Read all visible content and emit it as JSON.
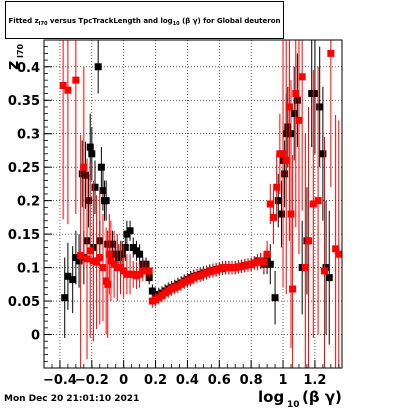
{
  "header": {
    "title_prefix": "Fitted",
    "title_z": "z",
    "title_sub_ipo": "I70",
    "title_middle": "versus TpcTrackLength and log",
    "title_sub10": "10",
    "title_suffix": "(β γ) for Global deuteron"
  },
  "footer": {
    "timestamp": "Mon Dec 20 21:01:10 2021"
  },
  "colors": {
    "series_black": "#000000",
    "series_red": "#ff0000",
    "grid": "#000000"
  },
  "chart_data": {
    "type": "scatter",
    "title": "Fitted z_I70 versus TpcTrackLength and log_10(β γ) for Global deuteron",
    "ylabel_main": "z",
    "ylabel_sub": "I70",
    "xlabel_main": "log",
    "xlabel_sub": "10",
    "xlabel_rest": "(β γ)",
    "xlim": [
      -0.5,
      1.37
    ],
    "ylim": [
      -0.05,
      0.44
    ],
    "x_ticks": [
      -0.4,
      -0.2,
      0,
      0.2,
      0.4,
      0.6,
      0.8,
      1,
      1.2
    ],
    "x_tick_labels": [
      "−0.4",
      "−0.2",
      "0",
      "0.2",
      "0.4",
      "0.6",
      "0.8",
      "1",
      "1.2"
    ],
    "y_ticks": [
      0,
      0.05,
      0.1,
      0.15,
      0.2,
      0.25,
      0.3,
      0.35,
      0.4
    ],
    "y_tick_labels": [
      "0",
      "0.05",
      "0.1",
      "0.15",
      "0.2",
      "0.25",
      "0.3",
      "0.35",
      "0.4"
    ],
    "grid": true,
    "series": [
      {
        "color": "black",
        "points": [
          [
            -0.37,
            0.055,
            0.06
          ],
          [
            -0.35,
            0.087,
            0.05
          ],
          [
            -0.32,
            0.082,
            0.05
          ],
          [
            -0.3,
            0.115,
            0.04
          ],
          [
            -0.28,
            0.11,
            0.04
          ],
          [
            -0.26,
            0.24,
            0.05
          ],
          [
            -0.25,
            0.115,
            0.04
          ],
          [
            -0.24,
            0.238,
            0.05
          ],
          [
            -0.23,
            0.14,
            0.04
          ],
          [
            -0.22,
            0.2,
            0.04
          ],
          [
            -0.21,
            0.28,
            0.05
          ],
          [
            -0.2,
            0.27,
            0.04
          ],
          [
            -0.19,
            0.13,
            0.03
          ],
          [
            -0.18,
            0.22,
            0.04
          ],
          [
            -0.16,
            0.4,
            0.04
          ],
          [
            -0.15,
            0.14,
            0.03
          ],
          [
            -0.14,
            0.25,
            0.03
          ],
          [
            -0.13,
            0.215,
            0.03
          ],
          [
            -0.12,
            0.2,
            0.03
          ],
          [
            -0.11,
            0.2,
            0.03
          ],
          [
            -0.1,
            0.135,
            0.02
          ],
          [
            -0.08,
            0.135,
            0.02
          ],
          [
            -0.07,
            0.135,
            0.02
          ],
          [
            -0.05,
            0.12,
            0.02
          ],
          [
            -0.03,
            0.115,
            0.02
          ],
          [
            -0.01,
            0.12,
            0.02
          ],
          [
            0.01,
            0.13,
            0.02
          ],
          [
            0.02,
            0.15,
            0.02
          ],
          [
            0.04,
            0.155,
            0.015
          ],
          [
            0.06,
            0.13,
            0.015
          ],
          [
            0.08,
            0.125,
            0.015
          ],
          [
            0.1,
            0.12,
            0.015
          ],
          [
            0.12,
            0.105,
            0.01
          ],
          [
            0.14,
            0.105,
            0.01
          ],
          [
            0.16,
            0.085,
            0.01
          ],
          [
            0.18,
            0.065,
            0.01
          ],
          [
            0.2,
            0.058,
            0.01
          ],
          [
            0.22,
            0.06,
            0.01
          ],
          [
            0.24,
            0.062,
            0.01
          ],
          [
            0.26,
            0.065,
            0.01
          ],
          [
            0.28,
            0.068,
            0.01
          ],
          [
            0.3,
            0.07,
            0.01
          ],
          [
            0.32,
            0.072,
            0.01
          ],
          [
            0.34,
            0.075,
            0.01
          ],
          [
            0.36,
            0.077,
            0.01
          ],
          [
            0.38,
            0.08,
            0.01
          ],
          [
            0.4,
            0.082,
            0.01
          ],
          [
            0.42,
            0.085,
            0.01
          ],
          [
            0.44,
            0.087,
            0.01
          ],
          [
            0.46,
            0.088,
            0.01
          ],
          [
            0.48,
            0.09,
            0.01
          ],
          [
            0.5,
            0.092,
            0.01
          ],
          [
            0.52,
            0.093,
            0.01
          ],
          [
            0.54,
            0.095,
            0.01
          ],
          [
            0.56,
            0.096,
            0.01
          ],
          [
            0.58,
            0.097,
            0.01
          ],
          [
            0.6,
            0.098,
            0.01
          ],
          [
            0.62,
            0.099,
            0.01
          ],
          [
            0.64,
            0.1,
            0.01
          ],
          [
            0.66,
            0.1,
            0.01
          ],
          [
            0.68,
            0.1,
            0.01
          ],
          [
            0.7,
            0.1,
            0.01
          ],
          [
            0.72,
            0.101,
            0.01
          ],
          [
            0.74,
            0.102,
            0.01
          ],
          [
            0.76,
            0.103,
            0.01
          ],
          [
            0.78,
            0.104,
            0.01
          ],
          [
            0.8,
            0.105,
            0.01
          ],
          [
            0.82,
            0.107,
            0.01
          ],
          [
            0.84,
            0.11,
            0.01
          ],
          [
            0.86,
            0.11,
            0.012
          ],
          [
            0.88,
            0.105,
            0.015
          ],
          [
            0.9,
            0.11,
            0.02
          ],
          [
            0.92,
            0.105,
            0.03
          ],
          [
            0.95,
            0.055,
            0.04
          ],
          [
            0.97,
            0.2,
            0.04
          ],
          [
            0.99,
            0.18,
            0.05
          ],
          [
            1.0,
            0.26,
            0.05
          ],
          [
            1.01,
            0.24,
            0.05
          ],
          [
            1.02,
            0.3,
            0.06
          ],
          [
            1.03,
            0.31,
            0.06
          ],
          [
            1.05,
            0.3,
            0.06
          ],
          [
            1.07,
            0.33,
            0.07
          ],
          [
            1.09,
            0.35,
            0.07
          ],
          [
            1.12,
            0.1,
            0.07
          ],
          [
            1.15,
            0.14,
            0.08
          ],
          [
            1.18,
            0.36,
            0.08
          ],
          [
            1.2,
            0.36,
            0.09
          ],
          [
            1.23,
            0.34,
            0.09
          ],
          [
            1.25,
            0.27,
            0.1
          ],
          [
            1.27,
            0.1,
            0.1
          ],
          [
            1.29,
            0.085,
            0.1
          ]
        ]
      },
      {
        "color": "red",
        "points": [
          [
            -0.38,
            0.372,
            0.2
          ],
          [
            -0.35,
            0.365,
            0.2
          ],
          [
            -0.3,
            0.38,
            0.2
          ],
          [
            -0.27,
            0.118,
            0.18
          ],
          [
            -0.25,
            0.25,
            0.15
          ],
          [
            -0.23,
            0.113,
            0.15
          ],
          [
            -0.21,
            0.125,
            0.13
          ],
          [
            -0.19,
            0.11,
            0.12
          ],
          [
            -0.17,
            0.108,
            0.1
          ],
          [
            -0.15,
            0.115,
            0.1
          ],
          [
            -0.13,
            0.1,
            0.08
          ],
          [
            -0.11,
            0.08,
            0.08
          ],
          [
            -0.1,
            0.075,
            0.08
          ],
          [
            -0.09,
            0.12,
            0.06
          ],
          [
            -0.08,
            0.11,
            0.06
          ],
          [
            -0.06,
            0.105,
            0.05
          ],
          [
            -0.04,
            0.1,
            0.05
          ],
          [
            -0.02,
            0.1,
            0.04
          ],
          [
            0.0,
            0.095,
            0.04
          ],
          [
            0.02,
            0.09,
            0.03
          ],
          [
            0.04,
            0.09,
            0.03
          ],
          [
            0.06,
            0.09,
            0.02
          ],
          [
            0.08,
            0.088,
            0.02
          ],
          [
            0.1,
            0.09,
            0.02
          ],
          [
            0.12,
            0.095,
            0.015
          ],
          [
            0.14,
            0.095,
            0.015
          ],
          [
            0.16,
            0.095,
            0.01
          ],
          [
            0.18,
            0.05,
            0.01
          ],
          [
            0.2,
            0.052,
            0.01
          ],
          [
            0.22,
            0.055,
            0.01
          ],
          [
            0.24,
            0.058,
            0.01
          ],
          [
            0.26,
            0.062,
            0.01
          ],
          [
            0.28,
            0.065,
            0.01
          ],
          [
            0.3,
            0.068,
            0.01
          ],
          [
            0.32,
            0.07,
            0.01
          ],
          [
            0.34,
            0.072,
            0.01
          ],
          [
            0.36,
            0.075,
            0.01
          ],
          [
            0.38,
            0.078,
            0.01
          ],
          [
            0.4,
            0.08,
            0.01
          ],
          [
            0.42,
            0.082,
            0.01
          ],
          [
            0.44,
            0.085,
            0.01
          ],
          [
            0.46,
            0.087,
            0.01
          ],
          [
            0.48,
            0.088,
            0.01
          ],
          [
            0.5,
            0.09,
            0.01
          ],
          [
            0.52,
            0.092,
            0.01
          ],
          [
            0.54,
            0.094,
            0.01
          ],
          [
            0.56,
            0.095,
            0.01
          ],
          [
            0.58,
            0.096,
            0.01
          ],
          [
            0.6,
            0.098,
            0.01
          ],
          [
            0.62,
            0.1,
            0.01
          ],
          [
            0.64,
            0.1,
            0.01
          ],
          [
            0.66,
            0.1,
            0.01
          ],
          [
            0.68,
            0.1,
            0.01
          ],
          [
            0.7,
            0.1,
            0.01
          ],
          [
            0.72,
            0.101,
            0.01
          ],
          [
            0.74,
            0.102,
            0.01
          ],
          [
            0.76,
            0.103,
            0.01
          ],
          [
            0.78,
            0.104,
            0.01
          ],
          [
            0.8,
            0.105,
            0.01
          ],
          [
            0.82,
            0.107,
            0.01
          ],
          [
            0.84,
            0.108,
            0.012
          ],
          [
            0.86,
            0.11,
            0.012
          ],
          [
            0.88,
            0.108,
            0.015
          ],
          [
            0.9,
            0.12,
            0.02
          ],
          [
            0.92,
            0.195,
            0.03
          ],
          [
            0.94,
            0.175,
            0.04
          ],
          [
            0.96,
            0.22,
            0.05
          ],
          [
            0.98,
            0.27,
            0.06
          ],
          [
            1.0,
            0.27,
            0.2
          ],
          [
            1.02,
            0.26,
            0.2
          ],
          [
            1.04,
            0.34,
            0.2
          ],
          [
            1.05,
            0.18,
            0.2
          ],
          [
            1.06,
            0.068,
            0.2
          ],
          [
            1.08,
            0.36,
            0.2
          ],
          [
            1.1,
            0.32,
            0.2
          ],
          [
            1.12,
            0.385,
            0.2
          ],
          [
            1.14,
            0.1,
            0.2
          ],
          [
            1.16,
            0.14,
            0.2
          ],
          [
            1.19,
            0.195,
            0.2
          ],
          [
            1.22,
            0.2,
            0.2
          ],
          [
            1.26,
            0.095,
            0.2
          ],
          [
            1.3,
            0.42,
            0.2
          ],
          [
            1.33,
            0.128,
            0.2
          ],
          [
            1.35,
            0.12,
            0.2
          ]
        ]
      }
    ]
  }
}
